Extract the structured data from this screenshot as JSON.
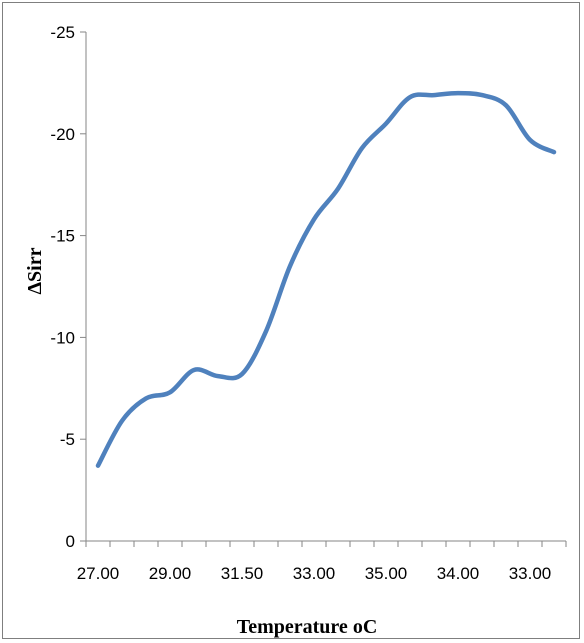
{
  "chart_data": {
    "type": "line",
    "title": "",
    "xlabel": "Temperature oC",
    "ylabel": "ΔSirr",
    "x_tick_labels": [
      "27.00",
      "29.00",
      "31.50",
      "33.00",
      "35.00",
      "34.00",
      "33.00"
    ],
    "y_tick_labels": [
      "-25",
      "-20",
      "-15",
      "-10",
      "-5",
      "0"
    ],
    "ylim": [
      0,
      -25
    ],
    "y_axis_reversed": true,
    "grid": false,
    "legend": "none",
    "line_color": "#4f81bd",
    "series": [
      {
        "values": [
          -3.7,
          -5.9,
          -7.0,
          -7.3,
          -8.4,
          -8.1,
          -8.2,
          -10.3,
          -13.5,
          -15.8,
          -17.3,
          -19.3,
          -20.5,
          -21.8,
          -21.9,
          -22.0,
          -21.9,
          -21.4,
          -19.7,
          -19.1
        ]
      }
    ]
  }
}
